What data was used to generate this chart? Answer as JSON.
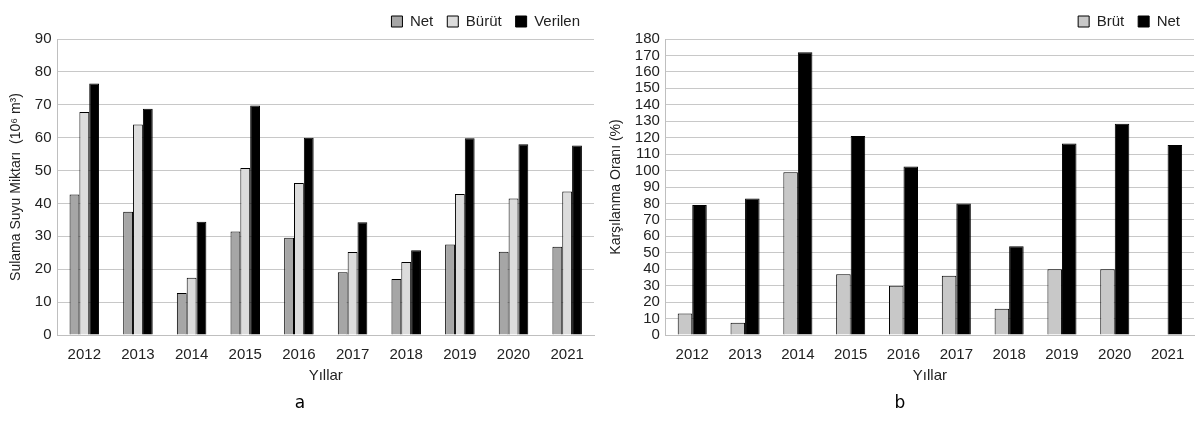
{
  "chart_data": [
    {
      "type": "bar",
      "categories": [
        "2012",
        "2013",
        "2014",
        "2015",
        "2016",
        "2017",
        "2018",
        "2019",
        "2020",
        "2021"
      ],
      "series": [
        {
          "name": "Net",
          "color": "#a6a6a6",
          "values": [
            42.7,
            37.5,
            12.8,
            31.5,
            29.6,
            19.1,
            17,
            27.5,
            25.3,
            26.8
          ]
        },
        {
          "name": "Bürüt",
          "color": "#dcdcdc",
          "values": [
            67.8,
            64,
            17.4,
            50.8,
            46.2,
            25.2,
            22.2,
            42.9,
            41.5,
            43.6
          ]
        },
        {
          "name": "Verilen",
          "color": "#000000",
          "values": [
            76.5,
            68.8,
            34.4,
            69.8,
            60,
            34.3,
            25.8,
            59.8,
            58,
            57.6
          ]
        }
      ],
      "ylabel": "Sulama Suyu Miktarı  (10⁶ m³)",
      "xlabel": "Yıllar",
      "ylim": [
        0,
        90
      ],
      "yticks": [
        0,
        10,
        20,
        30,
        40,
        50,
        60,
        70,
        80,
        90
      ],
      "grid": "y",
      "legend": "top right",
      "annotations": [
        "a"
      ]
    },
    {
      "type": "bar",
      "categories": [
        "2012",
        "2013",
        "2014",
        "2015",
        "2016",
        "2017",
        "2018",
        "2019",
        "2020",
        "2021"
      ],
      "series": [
        {
          "name": "Brüt",
          "color": "#c8c8c8",
          "values": [
            13,
            7.5,
            99,
            37,
            30,
            36,
            16,
            40,
            40,
            null
          ]
        },
        {
          "name": "Net",
          "color": "#000000",
          "values": [
            79,
            83,
            172,
            121,
            102.5,
            80,
            54,
            116.5,
            128.5,
            115.5
          ]
        }
      ],
      "ylabel": "Karşılanma Oranı (%)",
      "xlabel": "Yıllar",
      "ylim": [
        0,
        180
      ],
      "yticks": [
        0,
        10,
        20,
        30,
        40,
        50,
        60,
        70,
        80,
        90,
        100,
        110,
        120,
        130,
        140,
        150,
        160,
        170,
        180
      ],
      "grid": "y",
      "legend": "top right",
      "annotations": [
        "b"
      ]
    }
  ]
}
